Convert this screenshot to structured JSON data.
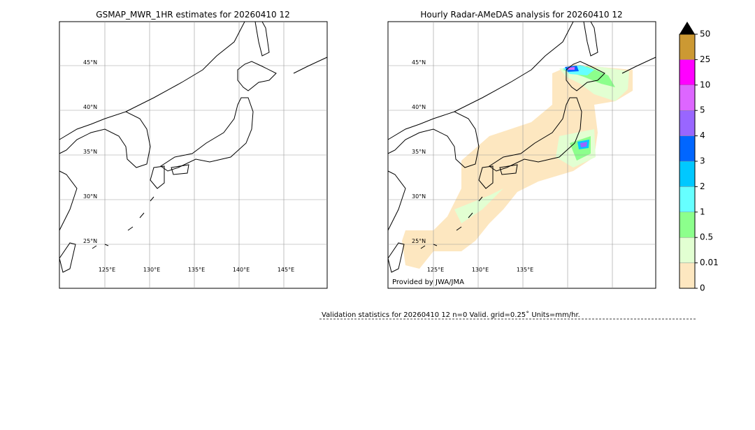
{
  "left_panel": {
    "title": "GSMAP_MWR_1HR estimates for 20260410 12",
    "lat_labels": [
      "45°N",
      "40°N",
      "35°N",
      "30°N",
      "25°N"
    ],
    "lon_labels": [
      "125°E",
      "130°E",
      "135°E",
      "140°E",
      "145°E"
    ]
  },
  "right_panel": {
    "title": "Hourly Radar-AMeDAS analysis for 20260410 12",
    "lat_labels": [
      "45°N",
      "40°N",
      "35°N",
      "30°N",
      "25°N"
    ],
    "lon_labels": [
      "125°E",
      "130°E",
      "135°E"
    ],
    "credit": "Provided by JWA/JMA"
  },
  "colorbar": {
    "labels": [
      "0",
      "0.01",
      "0.5",
      "1",
      "2",
      "3",
      "4",
      "5",
      "10",
      "25",
      "50"
    ],
    "colors": [
      "#fde7c0",
      "#e2ffd2",
      "#8cff8c",
      "#66ffff",
      "#00c8ff",
      "#0066ff",
      "#9966ff",
      "#dd66ff",
      "#ff00ff",
      "#cc9933"
    ],
    "extend_color": "#000000"
  },
  "validation": "Validation statistics for 20260410 12  n=0 Valid. grid=0.25˚ Units=mm/hr."
}
